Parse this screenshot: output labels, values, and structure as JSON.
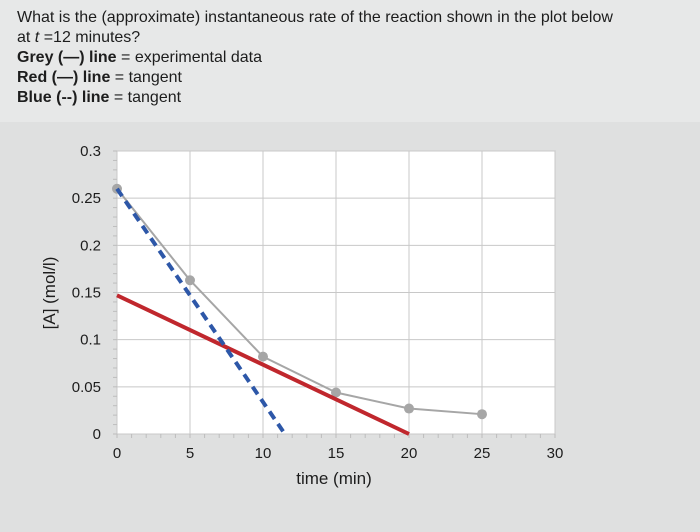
{
  "question": {
    "line1": "What is the (approximate) instantaneous rate of the reaction shown in the plot below",
    "line2_prefix": "at ",
    "line2_var": "t",
    "line2_suffix": " =12 minutes?",
    "legend": [
      {
        "label": "Grey (—) line",
        "desc": " = experimental data"
      },
      {
        "label": "Red (—) line",
        "desc": " = tangent"
      },
      {
        "label": "Blue (--) line",
        "desc": " = tangent"
      }
    ]
  },
  "chart_data": {
    "type": "line",
    "title": "",
    "xlabel": "time (min)",
    "ylabel": "[A] (mol/l)",
    "xlim": [
      0,
      30
    ],
    "ylim": [
      0,
      0.3
    ],
    "xticks": [
      0,
      5,
      10,
      15,
      20,
      25,
      30
    ],
    "xtick_labels": [
      "0",
      "5",
      "10",
      "15",
      "20",
      "25",
      "30"
    ],
    "yticks": [
      0,
      0.05,
      0.1,
      0.15,
      0.2,
      0.25,
      0.3
    ],
    "ytick_labels": [
      "0",
      "0.05",
      "0.1",
      "0.15",
      "0.2",
      "0.25",
      "0.3"
    ],
    "grid": true,
    "series": [
      {
        "role": "experimental",
        "style": "solid",
        "color": "#a6a6a6",
        "markers": true,
        "x": [
          0,
          5,
          10,
          15,
          20,
          25
        ],
        "y": [
          0.26,
          0.163,
          0.082,
          0.044,
          0.027,
          0.021
        ]
      },
      {
        "role": "tangent",
        "style": "solid",
        "color": "#c0272d",
        "markers": false,
        "x": [
          0,
          20
        ],
        "y": [
          0.147,
          0
        ]
      },
      {
        "role": "tangent",
        "style": "dashed",
        "color": "#2d57a8",
        "markers": false,
        "x": [
          0,
          11.5
        ],
        "y": [
          0.26,
          0
        ]
      }
    ]
  }
}
